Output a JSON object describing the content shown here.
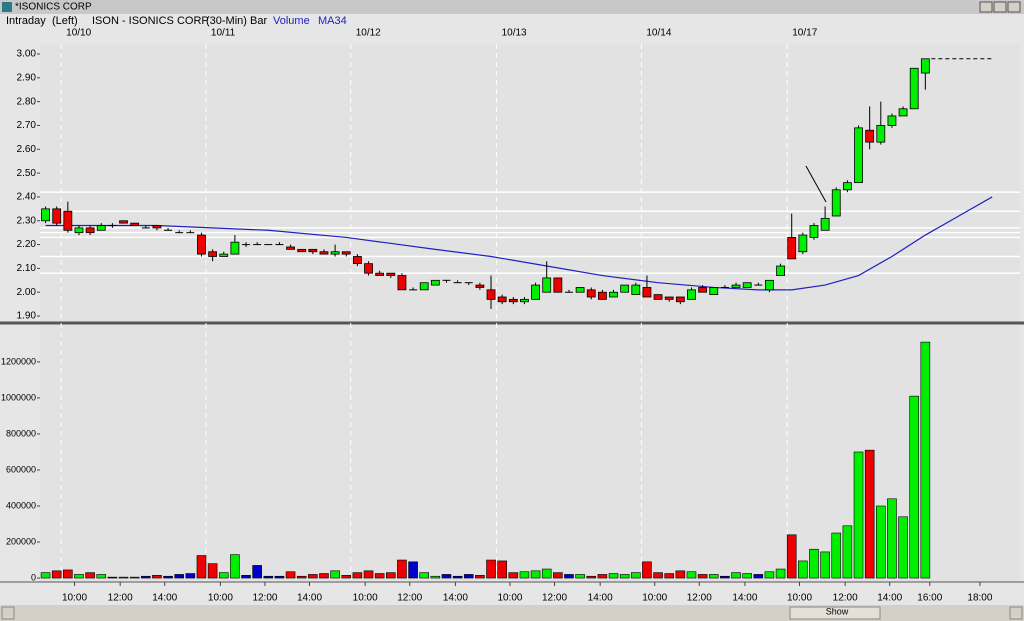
{
  "window": {
    "title": "*ISONICS CORP"
  },
  "scrollbar_label": "Show",
  "chart_data": {
    "type": "candlestick",
    "header": [
      {
        "text": "Intraday",
        "color": "#000000"
      },
      {
        "text": "(Left)",
        "color": "#000000"
      },
      {
        "text": "ISON - ISONICS CORP",
        "color": "#000000"
      },
      {
        "text": "(30-Min)",
        "color": "#000000"
      },
      {
        "text": "Bar",
        "color": "#000000"
      },
      {
        "text": "Volume",
        "color": "#2020c0"
      },
      {
        "text": "MA34",
        "color": "#2020c0"
      }
    ],
    "xlim": [
      -0.5,
      87.5
    ],
    "xticks": [
      {
        "value": 2.6,
        "label": "10:00"
      },
      {
        "value": 6.7,
        "label": "12:00"
      },
      {
        "value": 10.7,
        "label": "14:00"
      },
      {
        "value": 15.7,
        "label": "10:00"
      },
      {
        "value": 19.7,
        "label": "12:00"
      },
      {
        "value": 23.7,
        "label": "14:00"
      },
      {
        "value": 28.7,
        "label": "10:00"
      },
      {
        "value": 32.7,
        "label": "12:00"
      },
      {
        "value": 36.8,
        "label": "14:00"
      },
      {
        "value": 41.7,
        "label": "10:00"
      },
      {
        "value": 45.7,
        "label": "12:00"
      },
      {
        "value": 49.8,
        "label": "14:00"
      },
      {
        "value": 54.7,
        "label": "10:00"
      },
      {
        "value": 58.7,
        "label": "12:00"
      },
      {
        "value": 62.8,
        "label": "14:00"
      },
      {
        "value": 67.7,
        "label": "10:00"
      },
      {
        "value": 71.8,
        "label": "12:00"
      },
      {
        "value": 75.8,
        "label": "14:00"
      },
      {
        "value": 79.4,
        "label": "16:00"
      },
      {
        "value": 83.9,
        "label": "18:00"
      }
    ],
    "dates": [
      {
        "value": 1.4,
        "label": "10/10"
      },
      {
        "value": 14.4,
        "label": "10/11"
      },
      {
        "value": 27.4,
        "label": "10/12"
      },
      {
        "value": 40.5,
        "label": "10/13"
      },
      {
        "value": 53.5,
        "label": "10/14"
      },
      {
        "value": 66.6,
        "label": "10/17"
      }
    ],
    "ylim": [
      1.875,
      3.042
    ],
    "yticks": [
      {
        "value": 1.9,
        "label": "1.90"
      },
      {
        "value": 2.0,
        "label": "2.00"
      },
      {
        "value": 2.1,
        "label": "2.10"
      },
      {
        "value": 2.2,
        "label": "2.20"
      },
      {
        "value": 2.3,
        "label": "2.30"
      },
      {
        "value": 2.4,
        "label": "2.40"
      },
      {
        "value": 2.5,
        "label": "2.50"
      },
      {
        "value": 2.6,
        "label": "2.60"
      },
      {
        "value": 2.7,
        "label": "2.70"
      },
      {
        "value": 2.8,
        "label": "2.80"
      },
      {
        "value": 2.9,
        "label": "2.90"
      },
      {
        "value": 3.0,
        "label": "3.00"
      }
    ],
    "y2lim": [
      -22000,
      1405000
    ],
    "y2ticks": [
      0,
      200000,
      400000,
      600000,
      800000,
      1000000,
      1200000
    ],
    "up_color": "#00ee00",
    "down_color": "#ee0000",
    "flat_color": "#0000cc",
    "open": [
      2.3,
      2.35,
      2.34,
      2.25,
      2.27,
      2.26,
      2.28,
      2.3,
      2.29,
      2.27,
      2.28,
      2.26,
      2.25,
      2.25,
      2.24,
      2.17,
      2.15,
      2.16,
      2.2,
      2.2,
      2.2,
      2.2,
      2.19,
      2.18,
      2.18,
      2.17,
      2.16,
      2.17,
      2.15,
      2.12,
      2.08,
      2.08,
      2.07,
      2.01,
      2.01,
      2.03,
      2.05,
      2.04,
      2.04,
      2.03,
      2.01,
      1.98,
      1.97,
      1.96,
      1.97,
      2.0,
      2.06,
      2.0,
      2.0,
      2.01,
      2.0,
      1.98,
      2.0,
      1.99,
      2.02,
      1.99,
      1.98,
      1.98,
      1.97,
      2.02,
      1.99,
      2.02,
      2.02,
      2.02,
      2.03,
      2.01,
      2.07,
      2.23,
      2.17,
      2.23,
      2.26,
      2.32,
      2.43,
      2.46,
      2.68,
      2.63,
      2.7,
      2.74,
      2.77,
      2.92
    ],
    "high": [
      2.36,
      2.36,
      2.38,
      2.28,
      2.28,
      2.29,
      2.29,
      2.3,
      2.29,
      2.28,
      2.28,
      2.27,
      2.26,
      2.26,
      2.25,
      2.18,
      2.17,
      2.24,
      2.21,
      2.21,
      2.2,
      2.21,
      2.2,
      2.18,
      2.18,
      2.18,
      2.2,
      2.17,
      2.16,
      2.13,
      2.09,
      2.08,
      2.08,
      2.02,
      2.04,
      2.05,
      2.05,
      2.05,
      2.04,
      2.04,
      2.07,
      1.99,
      1.98,
      1.98,
      2.04,
      2.13,
      2.06,
      2.01,
      2.02,
      2.02,
      2.01,
      2.01,
      2.03,
      2.04,
      2.07,
      1.99,
      1.98,
      1.98,
      2.02,
      2.03,
      2.02,
      2.03,
      2.04,
      2.04,
      2.04,
      2.05,
      2.12,
      2.33,
      2.25,
      2.29,
      2.36,
      2.44,
      2.47,
      2.7,
      2.78,
      2.8,
      2.75,
      2.78,
      2.94,
      2.98
    ],
    "low": [
      2.29,
      2.28,
      2.25,
      2.24,
      2.24,
      2.26,
      2.27,
      2.29,
      2.28,
      2.27,
      2.26,
      2.26,
      2.25,
      2.25,
      2.15,
      2.13,
      2.15,
      2.16,
      2.19,
      2.2,
      2.2,
      2.2,
      2.18,
      2.17,
      2.16,
      2.16,
      2.15,
      2.15,
      2.11,
      2.07,
      2.07,
      2.06,
      2.01,
      2.01,
      2.01,
      2.03,
      2.04,
      2.04,
      2.03,
      2.01,
      1.93,
      1.95,
      1.95,
      1.95,
      1.97,
      2.0,
      2.0,
      2.0,
      2.0,
      1.97,
      1.97,
      1.98,
      2.0,
      1.99,
      1.98,
      1.97,
      1.96,
      1.95,
      1.97,
      2.0,
      1.99,
      2.02,
      2.02,
      2.02,
      2.03,
      2.0,
      2.07,
      2.14,
      2.16,
      2.22,
      2.26,
      2.32,
      2.42,
      2.46,
      2.6,
      2.62,
      2.69,
      2.74,
      2.77,
      2.85
    ],
    "close": [
      2.35,
      2.29,
      2.26,
      2.27,
      2.25,
      2.28,
      2.28,
      2.29,
      2.28,
      2.27,
      2.27,
      2.26,
      2.25,
      2.25,
      2.16,
      2.15,
      2.16,
      2.21,
      2.2,
      2.2,
      2.2,
      2.2,
      2.18,
      2.17,
      2.17,
      2.16,
      2.17,
      2.16,
      2.12,
      2.08,
      2.07,
      2.07,
      2.01,
      2.01,
      2.04,
      2.05,
      2.05,
      2.04,
      2.04,
      2.02,
      1.97,
      1.96,
      1.96,
      1.97,
      2.03,
      2.06,
      2.0,
      2.0,
      2.02,
      1.98,
      1.97,
      2.0,
      2.03,
      2.03,
      1.98,
      1.97,
      1.97,
      1.96,
      2.01,
      2.0,
      2.02,
      2.02,
      2.03,
      2.04,
      2.03,
      2.05,
      2.11,
      2.14,
      2.24,
      2.28,
      2.31,
      2.43,
      2.46,
      2.69,
      2.63,
      2.7,
      2.74,
      2.77,
      2.94,
      2.98
    ],
    "volume": [
      30000,
      40000,
      45000,
      20000,
      30000,
      20000,
      5000,
      5000,
      5000,
      10000,
      15000,
      10000,
      20000,
      25000,
      125000,
      80000,
      30000,
      130000,
      15000,
      70000,
      10000,
      10000,
      35000,
      10000,
      20000,
      25000,
      40000,
      15000,
      30000,
      40000,
      25000,
      30000,
      100000,
      90000,
      30000,
      10000,
      20000,
      10000,
      20000,
      15000,
      100000,
      95000,
      30000,
      35000,
      40000,
      50000,
      30000,
      20000,
      20000,
      10000,
      20000,
      25000,
      20000,
      30000,
      90000,
      30000,
      25000,
      40000,
      35000,
      20000,
      20000,
      10000,
      30000,
      25000,
      20000,
      35000,
      50000,
      240000,
      95000,
      160000,
      145000,
      250000,
      290000,
      700000,
      710000,
      400000,
      440000,
      340000,
      1010000,
      1310000
    ],
    "ma": {
      "name": "MA34",
      "color": "#2020c0",
      "x": [
        0,
        10,
        20,
        27,
        35,
        40,
        45,
        50,
        55,
        60,
        64,
        67,
        70,
        73,
        76,
        79,
        82,
        85
      ],
      "values": [
        2.28,
        2.28,
        2.26,
        2.23,
        2.18,
        2.15,
        2.11,
        2.07,
        2.04,
        2.02,
        2.01,
        2.01,
        2.03,
        2.07,
        2.15,
        2.24,
        2.32,
        2.4
      ]
    },
    "levels": [
      2.42,
      2.34,
      2.27,
      2.25,
      2.23,
      2.15,
      2.08
    ],
    "last_price": 2.98
  }
}
